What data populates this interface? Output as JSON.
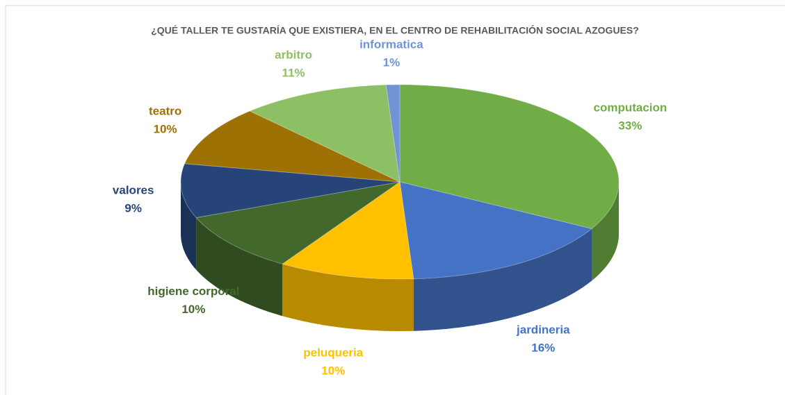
{
  "chart_data": {
    "type": "pie",
    "title": "¿QUÉ TALLER TE GUSTARÍA QUE EXISTIERA, EN EL CENTRO DE REHABILITACIÓN SOCIAL AZOGUES?",
    "categories": [
      "computacion",
      "jardineria",
      "peluqueria",
      "higiene corporal",
      "valores",
      "teatro",
      "arbitro",
      "informatica"
    ],
    "values": [
      33,
      16,
      10,
      10,
      9,
      10,
      11,
      1
    ],
    "value_labels": [
      "33%",
      "16%",
      "10%",
      "10%",
      "9%",
      "10%",
      "11%",
      "1%"
    ],
    "colors": [
      "#70ad47",
      "#4472c4",
      "#ffc000",
      "#43682b",
      "#264478",
      "#9e7104",
      "#8dc064",
      "#6f93d4"
    ]
  }
}
